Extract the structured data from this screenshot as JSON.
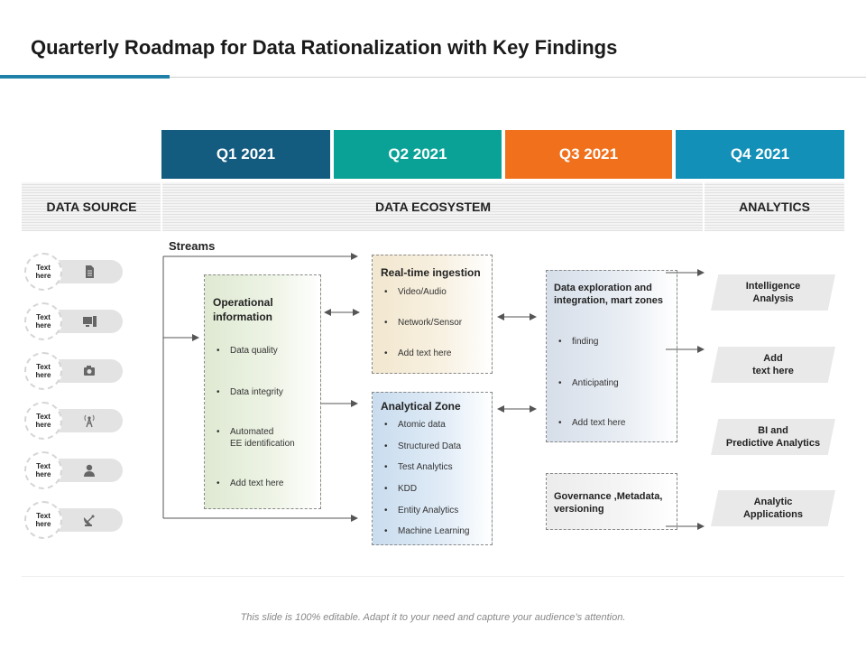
{
  "title": "Quarterly Roadmap for Data Rationalization with Key Findings",
  "quarters": [
    {
      "label": "Q1 2021",
      "color": "#145b80"
    },
    {
      "label": "Q2 2021",
      "color": "#0aa296"
    },
    {
      "label": "Q3 2021",
      "color": "#f0701c"
    },
    {
      "label": "Q4 2021",
      "color": "#1290b8"
    }
  ],
  "sections": {
    "data_source": "DATA SOURCE",
    "data_ecosystem": "DATA ECOSYSTEM",
    "analytics": "ANALYTICS"
  },
  "streams_label": "Streams",
  "sources": [
    {
      "label": "Text\nhere",
      "icon": "document-icon"
    },
    {
      "label": "Text\nhere",
      "icon": "computer-icon"
    },
    {
      "label": "Text\nhere",
      "icon": "camera-icon"
    },
    {
      "label": "Text\nhere",
      "icon": "antenna-icon"
    },
    {
      "label": "Text\nhere",
      "icon": "person-icon"
    },
    {
      "label": "Text\nhere",
      "icon": "satellite-dish-icon"
    }
  ],
  "operational": {
    "title": "Operational\ninformation",
    "items": [
      "Data quality",
      "Data integrity",
      "Automated\n EE  identification",
      "Add text here"
    ]
  },
  "realtime": {
    "title": "Real-time ingestion",
    "items": [
      "Video/Audio",
      "Network/Sensor",
      "Add text here"
    ]
  },
  "analytical": {
    "title": "Analytical Zone",
    "items": [
      "Atomic data",
      "Structured Data",
      "Test Analytics",
      "KDD",
      "Entity  Analytics",
      "Machine Learning"
    ]
  },
  "exploration": {
    "title": "Data exploration and\nintegration, mart zones",
    "items": [
      "finding",
      "Anticipating",
      "Add text here"
    ]
  },
  "governance": {
    "title": "Governance ,Metadata,\nversioning"
  },
  "analytics_outputs": [
    "Intelligence\nAnalysis",
    "Add\ntext here",
    "BI and\nPredictive Analytics",
    "Analytic\nApplications"
  ],
  "footer": "This slide is 100% editable. Adapt it to your need and capture your audience’s attention."
}
